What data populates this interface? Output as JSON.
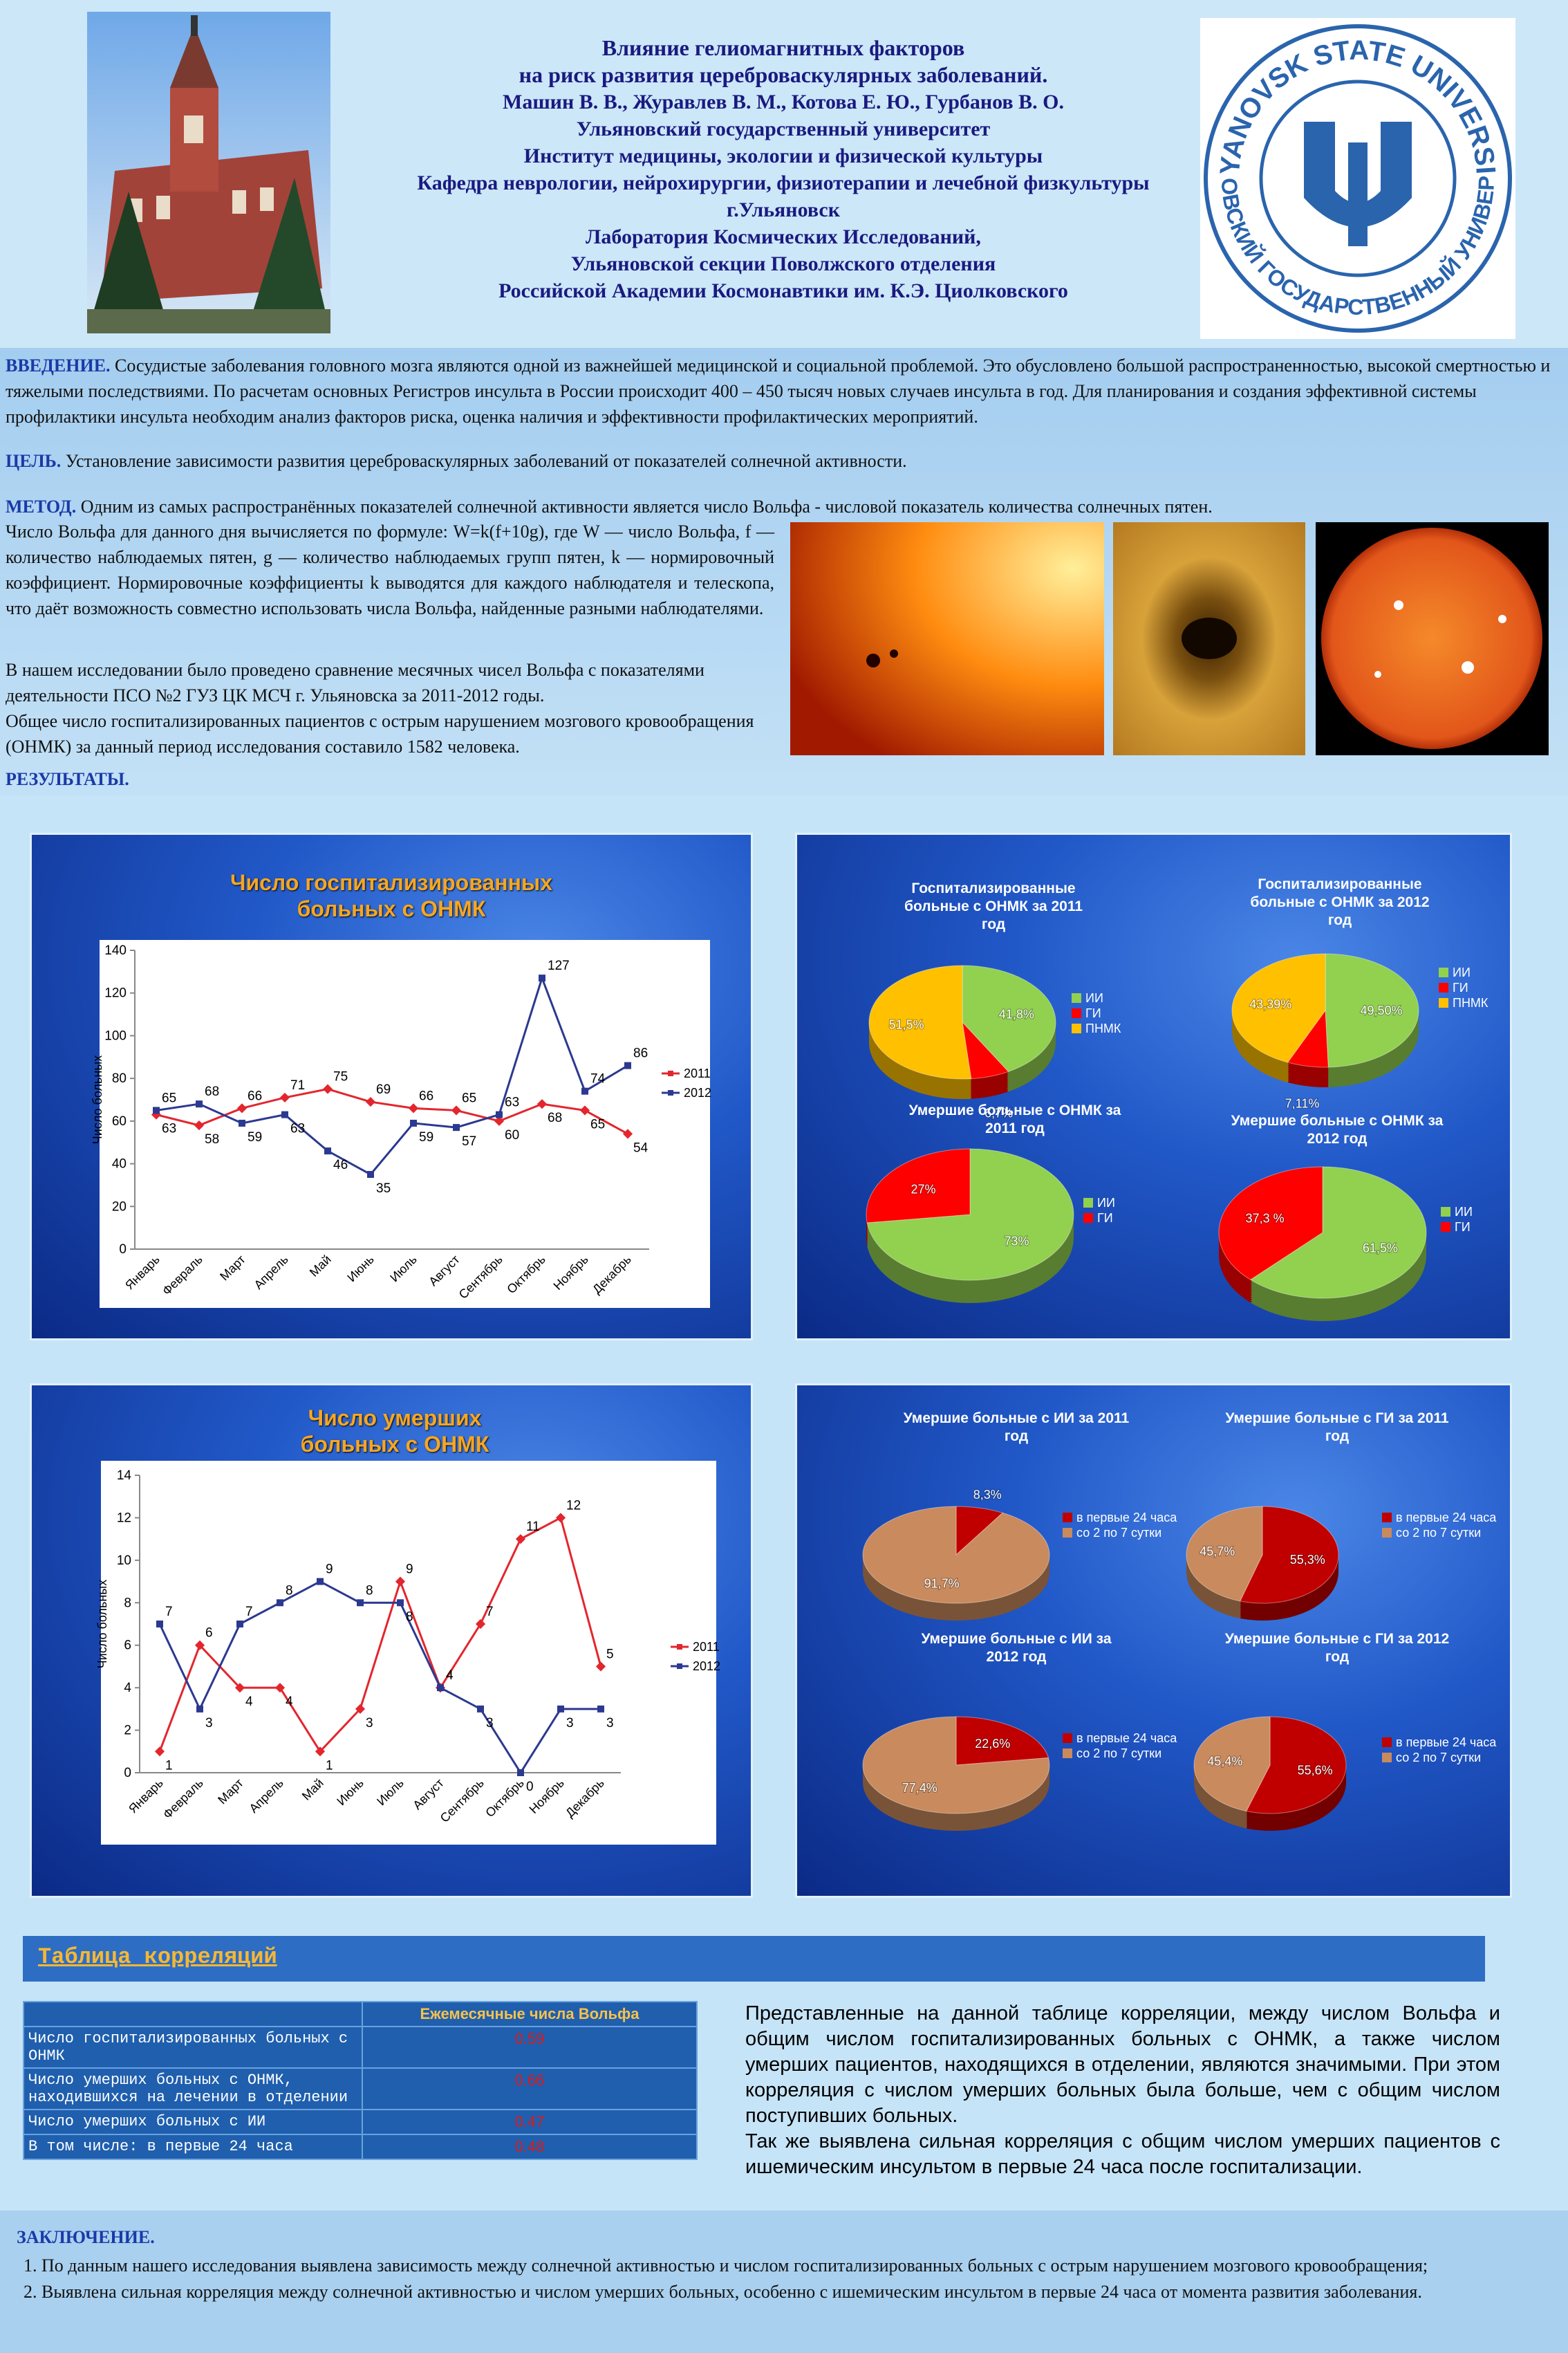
{
  "header": {
    "title_lines": [
      "Влияние гелиомагнитных факторов",
      "на риск развития цереброваскулярных заболеваний."
    ],
    "authors": "Машин В. В., Журавлев В. М., Котова Е. Ю., Гурбанов В. О.",
    "affiliations": [
      "Ульяновский государственный университет",
      "Институт медицины, экологии и физической культуры",
      "Кафедра неврологии, нейрохирургии, физиотерапии и лечебной физкультуры",
      "г.Ульяновск",
      "Лаборатория Космических Исследований,",
      "Ульяновской секции Поволжского отделения",
      "Российской Академии Космонавтики им. К.Э. Циолковского"
    ],
    "logo_text_top": "ULYANOVSK STATE UNIVERSITY",
    "logo_text_bottom": "УЛЬЯНОВСКИЙ ГОСУДАРСТВЕННЫЙ УНИВЕРСИТЕТ"
  },
  "introduction": {
    "heading": "ВВЕДЕНИЕ.",
    "text": "Сосудистые заболевания головного мозга являются одной из важнейшей медицинской и социальной проблемой. Это обусловлено большой распространенностью, высокой смертностью и тяжелыми последствиями. По расчетам основных Регистров инсульта в России происходит 400 – 450 тысяч новых случаев инсульта в год. Для планирования и создания эффективной системы профилактики инсульта необходим анализ факторов риска, оценка наличия и эффективности профилактических мероприятий."
  },
  "goal": {
    "heading": "ЦЕЛЬ.",
    "text": "Установление зависимости развития цереброваскулярных заболеваний от показателей солнечной активности."
  },
  "method": {
    "heading": "МЕТОД.",
    "text": "Одним из самых распространённых показателей солнечной активности является число Вольфа - числовой показатель количества солнечных пятен.",
    "paragraphs": [
      "Число Вольфа для данного дня вычисляется по формуле: W=k(f+10g), где W — число Вольфа, f — количество наблюдаемых пятен, g — количество наблюдаемых групп пятен, k — нормировочный коэффициент. Нормировочные коэффициенты k выводятся для каждого наблюдателя и телескопа, что даёт возможность совместно использовать числа Вольфа, найденные разными наблюдателями.",
      "В нашем исследовании было проведено сравнение месячных чисел Вольфа с показателями деятельности ПСО №2 ГУЗ ЦК МСЧ г. Ульяновска за 2011-2012 годы.",
      "Общее число госпитализированных пациентов с острым нарушением мозгового кровообращения (ОНМК) за данный период исследования составило 1582 человека."
    ]
  },
  "results_heading": "РЕЗУЛЬТАТЫ.",
  "chart_data": [
    {
      "type": "line",
      "title": "Число госпитализированных больных с ОНМК",
      "y_label": "Число больных",
      "categories": [
        "Январь",
        "Февраль",
        "Март",
        "Апрель",
        "Май",
        "Июнь",
        "Июль",
        "Август",
        "Сентябрь",
        "Октябрь",
        "Ноябрь",
        "Декабрь"
      ],
      "series": [
        {
          "name": "2011",
          "color": "#e3262d",
          "values": [
            63,
            58,
            66,
            71,
            75,
            69,
            66,
            65,
            60,
            68,
            65,
            54
          ]
        },
        {
          "name": "2012",
          "color": "#2b3990",
          "values": [
            65,
            68,
            59,
            63,
            46,
            35,
            59,
            57,
            63,
            127,
            74,
            86
          ]
        }
      ],
      "ylim": [
        0,
        140
      ],
      "yticks": [
        0,
        20,
        40,
        60,
        80,
        100,
        120,
        140
      ]
    },
    {
      "type": "pie",
      "title": "Госпитализированные больные с ОНМК за 2011 год",
      "categories": [
        "ИИ",
        "ГИ",
        "ПНМК"
      ],
      "colors": [
        "#92d050",
        "#ff0000",
        "#ffc000"
      ],
      "values": [
        41.8,
        6.7,
        51.5
      ],
      "value_labels": [
        "41,8%",
        "6,7%",
        "51,5%"
      ]
    },
    {
      "type": "pie",
      "title": "Госпитализированные больные с ОНМК за 2012 год",
      "categories": [
        "ИИ",
        "ГИ",
        "ПНМК"
      ],
      "colors": [
        "#92d050",
        "#ff0000",
        "#ffc000"
      ],
      "values": [
        49.5,
        7.11,
        43.39
      ],
      "value_labels": [
        "49,50%",
        "7,11%",
        "43,39%"
      ]
    },
    {
      "type": "pie",
      "title": "Умершие больные с ОНМК за 2011 год",
      "categories": [
        "ИИ",
        "ГИ"
      ],
      "colors": [
        "#92d050",
        "#ff0000"
      ],
      "values": [
        73,
        27
      ],
      "value_labels": [
        "73%",
        "27%"
      ]
    },
    {
      "type": "pie",
      "title": "Умершие больные с ОНМК за 2012 год",
      "categories": [
        "ИИ",
        "ГИ"
      ],
      "colors": [
        "#92d050",
        "#ff0000"
      ],
      "values": [
        61.5,
        37.3
      ],
      "value_labels": [
        "61,5%",
        "37,3 %"
      ]
    },
    {
      "type": "line",
      "title": "Число умерших больных с ОНМК",
      "y_label": "Число больных",
      "categories": [
        "Январь",
        "Февраль",
        "Март",
        "Апрель",
        "Май",
        "Июнь",
        "Июль",
        "Август",
        "Сентябрь",
        "Октябрь",
        "Ноябрь",
        "Декабрь"
      ],
      "series": [
        {
          "name": "2011",
          "color": "#e3262d",
          "values": [
            1,
            6,
            4,
            4,
            1,
            3,
            9,
            4,
            7,
            11,
            12,
            5
          ]
        },
        {
          "name": "2012",
          "color": "#2b3990",
          "values": [
            7,
            3,
            7,
            8,
            9,
            8,
            8,
            4,
            3,
            0,
            3,
            3
          ]
        }
      ],
      "ylim": [
        0,
        14
      ],
      "yticks": [
        0,
        2,
        4,
        6,
        8,
        10,
        12,
        14
      ]
    },
    {
      "type": "pie",
      "title": "Умершие больные с ИИ за 2011 год",
      "categories": [
        "в первые 24 часа",
        "со 2 по 7 сутки"
      ],
      "colors": [
        "#c00000",
        "#c98a5e"
      ],
      "values": [
        8.3,
        91.7
      ],
      "value_labels": [
        "8,3%",
        "91,7%"
      ]
    },
    {
      "type": "pie",
      "title": "Умершие больные с ГИ за 2011 год",
      "categories": [
        "в первые 24 часа",
        "со 2 по 7 сутки"
      ],
      "colors": [
        "#c00000",
        "#c98a5e"
      ],
      "values": [
        55.3,
        45.7
      ],
      "value_labels": [
        "55,3%",
        "45,7%"
      ]
    },
    {
      "type": "pie",
      "title": "Умершие больные с ИИ за 2012 год",
      "categories": [
        "в первые 24 часа",
        "со 2 по 7 сутки"
      ],
      "colors": [
        "#c00000",
        "#c98a5e"
      ],
      "values": [
        22.6,
        77.4
      ],
      "value_labels": [
        "22,6%",
        "77,4%"
      ]
    },
    {
      "type": "pie",
      "title": "Умершие больные с ГИ за 2012 год",
      "categories": [
        "в первые 24 часа",
        "со 2 по 7 сутки"
      ],
      "colors": [
        "#c00000",
        "#c98a5e"
      ],
      "values": [
        55.6,
        45.4
      ],
      "value_labels": [
        "55,6%",
        "45,4%"
      ]
    }
  ],
  "correlation_table": {
    "title": "Таблица корреляций",
    "header": "Ежемесячные числа Вольфа",
    "rows": [
      [
        "Число госпитализированных больных с ОНМК",
        0.59
      ],
      [
        "Число умерших больных с ОНМК, находившихся на лечении в отделении",
        0.66
      ],
      [
        "Число умерших больных с ИИ",
        0.47
      ],
      [
        "В том числе: в первые 24 часа",
        0.48
      ]
    ]
  },
  "table_note": {
    "paragraphs": [
      "Представленные на данной таблице корреляции, между числом Вольфа и общим числом госпитализированных больных с ОНМК, а также числом умерших пациентов, находящихся в отделении, являются значимыми. При этом корреляция с числом умерших больных была больше, чем с общим числом поступивших больных.",
      "Так же выявлена сильная корреляция с общим числом умерших пациентов с ишемическим инсультом в первые 24 часа после госпитализации."
    ]
  },
  "conclusion": {
    "heading": "ЗАКЛЮЧЕНИЕ.",
    "items": [
      "По данным нашего исследования выявлена зависимость между солнечной активностью и числом госпитализированных больных с острым нарушением мозгового кровообращения;",
      "Выявлена сильная корреляция между солнечной активностью и числом умерших больных, особенно с ишемическим инсультом в первые 24 часа от момента развития заболевания."
    ]
  }
}
